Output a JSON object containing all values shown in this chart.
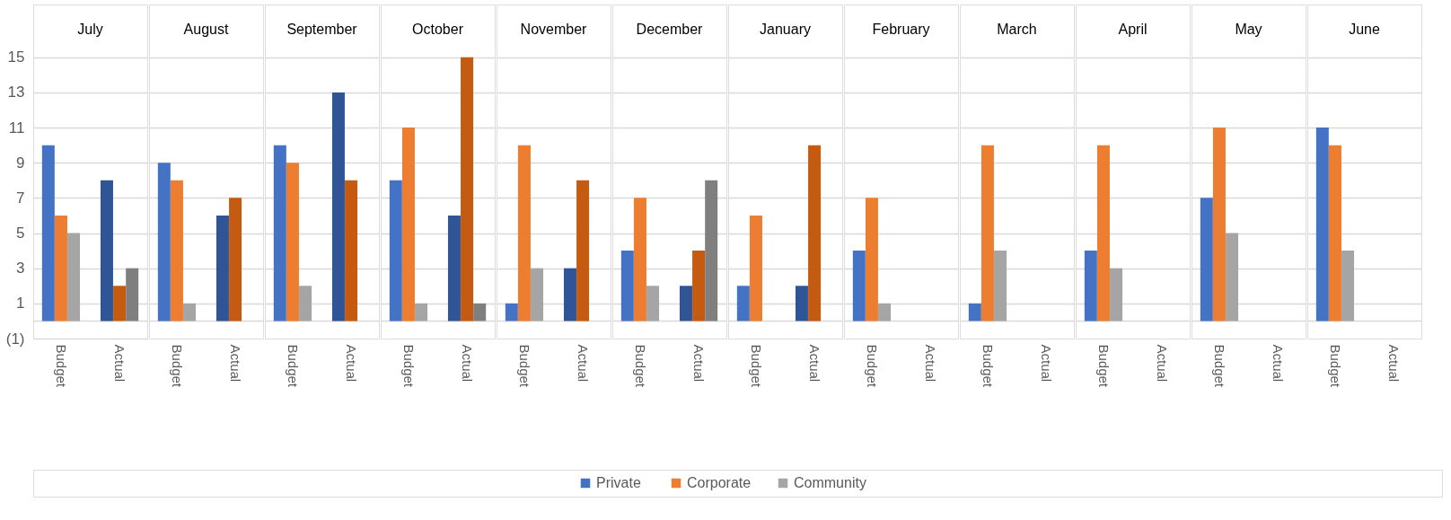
{
  "chart_data": [
    {
      "type": "bar",
      "title": "July",
      "categories": [
        "Budget",
        "Actual"
      ],
      "ylim": [
        -1,
        18
      ],
      "yticks": [
        {
          "value": -1,
          "label": "(1)"
        },
        {
          "value": 0,
          "label": null
        },
        1,
        3,
        5,
        7,
        9,
        11,
        13,
        15
      ],
      "grid": "y",
      "legend": "bottom",
      "series": [
        {
          "name": "Private",
          "color": "#4472c4",
          "colors": [
            "#4472c4",
            "#2f5597"
          ],
          "values": [
            10,
            8
          ]
        },
        {
          "name": "Corporate",
          "color": "#ed7d31",
          "colors": [
            "#ed7d31",
            "#c55a11"
          ],
          "values": [
            6,
            2
          ]
        },
        {
          "name": "Community",
          "color": "#a5a5a5",
          "colors": [
            "#a5a5a5",
            "#7f7f7f"
          ],
          "values": [
            5,
            3
          ]
        }
      ]
    },
    {
      "type": "bar",
      "title": "August",
      "categories": [
        "Budget",
        "Actual"
      ],
      "ylim": [
        -1,
        18
      ],
      "yticks": [
        0,
        1,
        3,
        5,
        7,
        9,
        11,
        13,
        15
      ],
      "grid": "y",
      "tick_labels": "x",
      "series": [
        {
          "colors": [
            "#4472c4",
            "#2f5597"
          ],
          "values": [
            9,
            6
          ]
        },
        {
          "colors": [
            "#ed7d31",
            "#c55a11"
          ],
          "values": [
            8,
            7
          ]
        },
        {
          "colors": [
            "#a5a5a5",
            "#7f7f7f"
          ],
          "values": [
            1,
            null
          ]
        }
      ]
    },
    {
      "type": "bar",
      "title": "September",
      "categories": [
        "Budget",
        "Actual"
      ],
      "ylim": [
        -1,
        18
      ],
      "yticks": [
        0,
        1,
        3,
        5,
        7,
        9,
        11,
        13,
        15
      ],
      "grid": "y",
      "tick_labels": "x",
      "series": [
        {
          "colors": [
            "#4472c4",
            "#2f5597"
          ],
          "values": [
            10,
            13
          ]
        },
        {
          "colors": [
            "#ed7d31",
            "#c55a11"
          ],
          "values": [
            9,
            8
          ]
        },
        {
          "colors": [
            "#a5a5a5",
            "#7f7f7f"
          ],
          "values": [
            2,
            null
          ]
        }
      ]
    },
    {
      "type": "bar",
      "title": "October",
      "categories": [
        "Budget",
        "Actual"
      ],
      "ylim": [
        -1,
        18
      ],
      "yticks": [
        0,
        1,
        3,
        5,
        7,
        9,
        11,
        13,
        15
      ],
      "grid": "y",
      "tick_labels": "x",
      "series": [
        {
          "colors": [
            "#4472c4",
            "#2f5597"
          ],
          "values": [
            8,
            6
          ]
        },
        {
          "colors": [
            "#ed7d31",
            "#c55a11"
          ],
          "values": [
            11,
            15
          ]
        },
        {
          "colors": [
            "#a5a5a5",
            "#7f7f7f"
          ],
          "values": [
            1,
            1
          ]
        }
      ]
    },
    {
      "type": "bar",
      "title": "November",
      "categories": [
        "Budget",
        "Actual"
      ],
      "ylim": [
        -1,
        18
      ],
      "yticks": [
        0,
        1,
        3,
        5,
        7,
        9,
        11,
        13,
        15
      ],
      "grid": "y",
      "tick_labels": "x",
      "series": [
        {
          "colors": [
            "#4472c4",
            "#2f5597"
          ],
          "values": [
            1,
            3
          ]
        },
        {
          "colors": [
            "#ed7d31",
            "#c55a11"
          ],
          "values": [
            10,
            8
          ]
        },
        {
          "colors": [
            "#a5a5a5",
            "#7f7f7f"
          ],
          "values": [
            3,
            null
          ]
        }
      ]
    },
    {
      "type": "bar",
      "title": "December",
      "categories": [
        "Budget",
        "Actual"
      ],
      "ylim": [
        -1,
        18
      ],
      "yticks": [
        0,
        1,
        3,
        5,
        7,
        9,
        11,
        13,
        15
      ],
      "grid": "y",
      "tick_labels": "x",
      "series": [
        {
          "colors": [
            "#4472c4",
            "#2f5597"
          ],
          "values": [
            4,
            2
          ]
        },
        {
          "colors": [
            "#ed7d31",
            "#c55a11"
          ],
          "values": [
            7,
            4
          ]
        },
        {
          "colors": [
            "#a5a5a5",
            "#7f7f7f"
          ],
          "values": [
            2,
            8
          ]
        }
      ]
    },
    {
      "type": "bar",
      "title": "January",
      "categories": [
        "Budget",
        "Actual"
      ],
      "ylim": [
        -1,
        18
      ],
      "yticks": [
        0,
        1,
        3,
        5,
        7,
        9,
        11,
        13,
        15
      ],
      "grid": "y",
      "tick_labels": "x",
      "series": [
        {
          "colors": [
            "#4472c4",
            "#2f5597"
          ],
          "values": [
            2,
            2
          ]
        },
        {
          "colors": [
            "#ed7d31",
            "#c55a11"
          ],
          "values": [
            6,
            10
          ]
        },
        {
          "colors": [
            "#a5a5a5",
            "#7f7f7f"
          ],
          "values": [
            null,
            null
          ]
        }
      ]
    },
    {
      "type": "bar",
      "title": "February",
      "categories": [
        "Budget",
        "Actual"
      ],
      "ylim": [
        -1,
        18
      ],
      "yticks": [
        0,
        1,
        3,
        5,
        7,
        9,
        11,
        13,
        15
      ],
      "grid": "y",
      "tick_labels": "x",
      "series": [
        {
          "colors": [
            "#4472c4",
            "#2f5597"
          ],
          "values": [
            4,
            null
          ]
        },
        {
          "colors": [
            "#ed7d31",
            "#c55a11"
          ],
          "values": [
            7,
            null
          ]
        },
        {
          "colors": [
            "#a5a5a5",
            "#7f7f7f"
          ],
          "values": [
            1,
            null
          ]
        }
      ]
    },
    {
      "type": "bar",
      "title": "March",
      "categories": [
        "Budget",
        "Actual"
      ],
      "ylim": [
        -1,
        18
      ],
      "yticks": [
        0,
        1,
        3,
        5,
        7,
        9,
        11,
        13,
        15
      ],
      "grid": "y",
      "tick_labels": "x",
      "series": [
        {
          "colors": [
            "#4472c4",
            "#2f5597"
          ],
          "values": [
            1,
            null
          ]
        },
        {
          "colors": [
            "#ed7d31",
            "#c55a11"
          ],
          "values": [
            10,
            null
          ]
        },
        {
          "colors": [
            "#a5a5a5",
            "#7f7f7f"
          ],
          "values": [
            4,
            null
          ]
        }
      ]
    },
    {
      "type": "bar",
      "title": "April",
      "categories": [
        "Budget",
        "Actual"
      ],
      "ylim": [
        -1,
        18
      ],
      "yticks": [
        0,
        1,
        3,
        5,
        7,
        9,
        11,
        13,
        15
      ],
      "grid": "y",
      "tick_labels": "x",
      "series": [
        {
          "colors": [
            "#4472c4",
            "#2f5597"
          ],
          "values": [
            4,
            null
          ]
        },
        {
          "colors": [
            "#ed7d31",
            "#c55a11"
          ],
          "values": [
            10,
            null
          ]
        },
        {
          "colors": [
            "#a5a5a5",
            "#7f7f7f"
          ],
          "values": [
            3,
            null
          ]
        }
      ]
    },
    {
      "type": "bar",
      "title": "May",
      "categories": [
        "Budget",
        "Actual"
      ],
      "ylim": [
        -1,
        18
      ],
      "yticks": [
        0,
        1,
        3,
        5,
        7,
        9,
        11,
        13,
        15
      ],
      "grid": "y",
      "tick_labels": "x",
      "series": [
        {
          "colors": [
            "#4472c4",
            "#2f5597"
          ],
          "values": [
            7,
            null
          ]
        },
        {
          "colors": [
            "#ed7d31",
            "#c55a11"
          ],
          "values": [
            11,
            null
          ]
        },
        {
          "colors": [
            "#a5a5a5",
            "#7f7f7f"
          ],
          "values": [
            5,
            null
          ]
        }
      ]
    },
    {
      "type": "bar",
      "title": "June",
      "categories": [
        "Budget",
        "Actual"
      ],
      "ylim": [
        -1,
        18
      ],
      "yticks": [
        0,
        1,
        3,
        5,
        7,
        9,
        11,
        13,
        15
      ],
      "grid": "y",
      "tick_labels": "x",
      "series": [
        {
          "colors": [
            "#4472c4",
            "#2f5597"
          ],
          "values": [
            11,
            null
          ]
        },
        {
          "colors": [
            "#ed7d31",
            "#c55a11"
          ],
          "values": [
            10,
            null
          ]
        },
        {
          "colors": [
            "#a5a5a5",
            "#7f7f7f"
          ],
          "values": [
            4,
            null
          ]
        }
      ]
    }
  ]
}
